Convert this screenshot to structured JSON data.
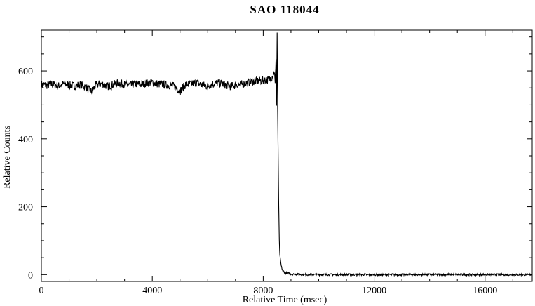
{
  "chart_data": {
    "type": "line",
    "title": "SAO 118044",
    "xlabel": "Relative Time (msec)",
    "ylabel": "Relative Counts",
    "xlim": [
      0,
      17700
    ],
    "ylim": [
      -20,
      720
    ],
    "xticks": [
      0,
      4000,
      8000,
      12000,
      16000
    ],
    "yticks": [
      0,
      200,
      400,
      600
    ],
    "grid": false,
    "legend": "none",
    "series": [
      {
        "color": "#000000",
        "points": [
          [
            0,
            560
          ],
          [
            200,
            558
          ],
          [
            400,
            562
          ],
          [
            600,
            555
          ],
          [
            800,
            562
          ],
          [
            1000,
            558
          ],
          [
            1200,
            556
          ],
          [
            1400,
            560
          ],
          [
            1600,
            552
          ],
          [
            1800,
            540
          ],
          [
            2000,
            560
          ],
          [
            2200,
            562
          ],
          [
            2400,
            555
          ],
          [
            2600,
            560
          ],
          [
            2800,
            565
          ],
          [
            3000,
            560
          ],
          [
            3200,
            558
          ],
          [
            3400,
            562
          ],
          [
            3600,
            560
          ],
          [
            3800,
            565
          ],
          [
            4000,
            566
          ],
          [
            4200,
            562
          ],
          [
            4400,
            560
          ],
          [
            4600,
            558
          ],
          [
            4800,
            555
          ],
          [
            5000,
            540
          ],
          [
            5200,
            560
          ],
          [
            5400,
            562
          ],
          [
            5600,
            566
          ],
          [
            5800,
            558
          ],
          [
            6000,
            556
          ],
          [
            6200,
            562
          ],
          [
            6400,
            565
          ],
          [
            6600,
            560
          ],
          [
            6800,
            555
          ],
          [
            7000,
            558
          ],
          [
            7200,
            560
          ],
          [
            7400,
            565
          ],
          [
            7600,
            568
          ],
          [
            7800,
            570
          ],
          [
            8000,
            572
          ],
          [
            8200,
            574
          ],
          [
            8300,
            580
          ],
          [
            8350,
            590
          ],
          [
            8400,
            600
          ],
          [
            8430,
            560
          ],
          [
            8460,
            640
          ],
          [
            8480,
            500
          ],
          [
            8500,
            715
          ],
          [
            8520,
            480
          ],
          [
            8540,
            350
          ],
          [
            8560,
            200
          ],
          [
            8580,
            100
          ],
          [
            8600,
            55
          ],
          [
            8650,
            25
          ],
          [
            8700,
            12
          ],
          [
            8800,
            5
          ],
          [
            9000,
            2
          ],
          [
            9500,
            0
          ],
          [
            10000,
            0
          ],
          [
            11000,
            0
          ],
          [
            12000,
            0
          ],
          [
            13000,
            0
          ],
          [
            14000,
            0
          ],
          [
            15000,
            0
          ],
          [
            16000,
            0
          ],
          [
            17000,
            0
          ],
          [
            17700,
            0
          ]
        ]
      }
    ]
  }
}
